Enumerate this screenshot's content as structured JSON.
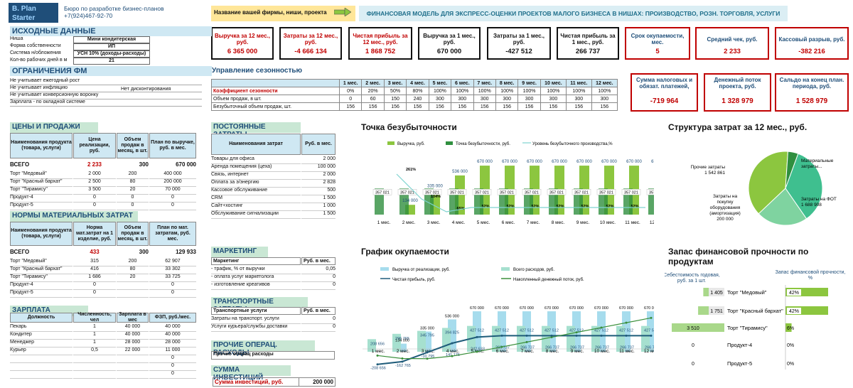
{
  "header": {
    "logo_line1": "B. Plan",
    "logo_line2": "Starter",
    "contact1": "Бюро по разработке бизнес-планов",
    "contact2": "+7(924)467-92-70",
    "biz_label": "Название вашей фирмы, ниши, проекта",
    "banner": "ФИНАНСОВАЯ МОДЕЛЬ ДЛЯ ЭКСПРЕСС-ОЦЕНКИ ПРОЕКТОВ МАЛОГО БИЗНЕСА В НИШАХ: ПРОИЗВОДСТВО, РОЗН. ТОРГОВЛЯ, УСЛУГИ"
  },
  "kpis": [
    {
      "t": "Выручка за 12 мес., руб.",
      "v": "6 365 000",
      "red": true
    },
    {
      "t": "Затраты за 12 мес., руб.",
      "v": "-4 666 134",
      "red": true
    },
    {
      "t": "Чистая прибыль за 12 мес., руб.",
      "v": "1 868 752",
      "red": true
    },
    {
      "t": "Выручка за 1 мес., руб.",
      "v": "670 000",
      "red": false
    },
    {
      "t": "Затраты за 1 мес., руб.",
      "v": "-427 512",
      "red": false
    },
    {
      "t": "Чистая прибыль за 1 мес., руб.",
      "v": "266 737",
      "red": false
    },
    {
      "t": "Срок окупаемости, мес.",
      "v": "5",
      "red": false
    },
    {
      "t": "Средний чек, руб.",
      "v": "2 233",
      "red": false
    },
    {
      "t": "Кассовый разрыв, руб.",
      "v": "-382 216",
      "red": true
    }
  ],
  "kpis2": [
    {
      "t": "Сумма налоговых и обязат. платежей,",
      "v": "-719 964"
    },
    {
      "t": "Денежный поток проекта, руб.",
      "v": "1 328 979"
    },
    {
      "t": "Сальдо на конец план. периода, руб.",
      "v": "1 528 979"
    }
  ],
  "source": {
    "title": "ИСХОДНЫЕ ДАННЫЕ",
    "rows": [
      [
        "Ниша",
        "Мини кондитерская"
      ],
      [
        "Форма собственности",
        "ИП"
      ],
      [
        "Система н/обложения",
        "УСН 10% (доходы-расходы)"
      ],
      [
        "Кол-во рабочих дней в м",
        "21"
      ]
    ]
  },
  "limits": {
    "title": "ОГРАНИЧЕНИЯ ФМ",
    "rows": [
      "Не учитывает ежегодный рост",
      "Не учитывает инфляцию",
      "Не учитывает конверсионную воронку",
      "Зарплата - по окладной системе"
    ],
    "extra": "Нет дисконтирования"
  },
  "season": {
    "title": "Управление сезонностью",
    "months": [
      "1 мес.",
      "2 мес.",
      "3 мес.",
      "4 мес.",
      "5 мес.",
      "6 мес.",
      "7 мес.",
      "8 мес.",
      "9 мес.",
      "10 мес.",
      "11 мес.",
      "12 мес."
    ],
    "rows": [
      {
        "label": "Коэффициент сезонности",
        "vals": [
          "0%",
          "20%",
          "50%",
          "80%",
          "100%",
          "100%",
          "100%",
          "100%",
          "100%",
          "100%",
          "100%",
          "100%"
        ]
      },
      {
        "label": "Объем продаж, в шт.",
        "vals": [
          "0",
          "60",
          "150",
          "240",
          "300",
          "300",
          "300",
          "300",
          "300",
          "300",
          "300",
          "300"
        ]
      },
      {
        "label": "Безубыточный объем продаж, шт.",
        "vals": [
          "156",
          "156",
          "156",
          "156",
          "156",
          "156",
          "156",
          "156",
          "156",
          "156",
          "156",
          "156"
        ]
      }
    ]
  },
  "prices": {
    "title": "ЦЕНЫ И ПРОДАЖИ",
    "headers": [
      "Наименования продукта (товара, услуги)",
      "Цена реализации, руб.",
      "Объем продаж в месяц, в шт.",
      "План по выручке, руб. в мес."
    ],
    "total": [
      "ВСЕГО",
      "2 233",
      "300",
      "670 000"
    ],
    "rows": [
      [
        "Торт \"Медовый\"",
        "2 000",
        "200",
        "400 000"
      ],
      [
        "Торт \"Красный бархат\"",
        "2 500",
        "80",
        "200 000"
      ],
      [
        "Торт \"Тирамису\"",
        "3 500",
        "20",
        "70 000"
      ],
      [
        "Продукт-4",
        "0",
        "0",
        "0"
      ],
      [
        "Продукт-5",
        "0",
        "0",
        "0"
      ]
    ]
  },
  "material": {
    "title": "НОРМЫ МАТЕРИАЛЬНЫХ ЗАТРАТ",
    "headers": [
      "Наименования продукта (товара, услуги)",
      "Норма мат.затрат на 1 изделие, руб.",
      "Объем продаж в месяц, в шт.",
      "План по мат. затратам, руб. мес."
    ],
    "total": [
      "ВСЕГО",
      "433",
      "300",
      "129 933"
    ],
    "rows": [
      [
        "Торт \"Медовый\"",
        "315",
        "200",
        "62 907"
      ],
      [
        "Торт \"Красный бархат\"",
        "416",
        "80",
        "33 302"
      ],
      [
        "Торт \"Тирамису\"",
        "1 686",
        "20",
        "33 725"
      ],
      [
        "Продукт-4",
        "0",
        "",
        "0"
      ],
      [
        "Продукт-5",
        "0",
        "",
        "0"
      ]
    ]
  },
  "salary": {
    "title": "ЗАРПЛАТА",
    "headers": [
      "Должность",
      "Численность, чел",
      "Зарплата в мес",
      "ФЗП, руб./мес."
    ],
    "rows": [
      [
        "Пекарь",
        "1",
        "40 000",
        "40 000"
      ],
      [
        "Кондитер",
        "1",
        "40 000",
        "40 000"
      ],
      [
        "Менеджер",
        "1",
        "28 000",
        "28 000"
      ],
      [
        "Курьер",
        "0,5",
        "22 000",
        "11 000"
      ],
      [
        "",
        "",
        "",
        "0"
      ],
      [
        "",
        "",
        "",
        "0"
      ],
      [
        "",
        "",
        "",
        "0"
      ]
    ]
  },
  "fixed": {
    "title": "ПОСТОЯННЫЕ ЗАТРАТЫ",
    "headers": [
      "Наименования затрат",
      "Руб. в мес."
    ],
    "rows": [
      [
        "Товары для офиса",
        "2 000"
      ],
      [
        "Аренда помещения (цеха)",
        "100 000"
      ],
      [
        "Связь, интернет",
        "2 000"
      ],
      [
        "Оплата за э/энергию",
        "2 828"
      ],
      [
        "Кассовое обслуживание",
        "500"
      ],
      [
        "CRM",
        "1 500"
      ],
      [
        "Сайт+хостинг",
        "1 000"
      ],
      [
        "Обслуживание сигнализации",
        "1 500"
      ]
    ]
  },
  "marketing": {
    "title": "МАРКЕТИНГ",
    "headers": [
      "Маркетинг",
      "Руб. в мес."
    ],
    "rows": [
      [
        "- трафик, % от выручки",
        "0,05"
      ],
      [
        "- оплата услуг маркетолога",
        "0"
      ],
      [
        "- изготовление креативов",
        "0"
      ]
    ]
  },
  "transport": {
    "title": "ТРАНСПОРТНЫЕ ЗАТРАТЫ",
    "headers": [
      "Транспортные услуги",
      "Руб. в мес."
    ],
    "rows": [
      [
        "Затраты на транспорт. услуги",
        "0"
      ],
      [
        "Услуги курьера/службы доставки",
        "0"
      ]
    ]
  },
  "ops": {
    "title": "ПРОЧИЕ ОПЕРАЦ. РАСХОДЫ",
    "rows": [
      [
        "Прочие операц расходы",
        ""
      ]
    ]
  },
  "invest": {
    "title": "СУММА ИНВЕСТИЦИЙ",
    "label": "Сумма инвестиций, руб.",
    "value": "200 000"
  },
  "chart_data": [
    {
      "type": "bar",
      "title": "Точка безубыточности",
      "legend": [
        "Выручка, руб.",
        "Точка безубыточности, руб.",
        "Уровень безубыточного производства,%"
      ],
      "categories": [
        "1 мес.",
        "2 мес.",
        "3 мес.",
        "4 мес.",
        "5 мес.",
        "6 мес.",
        "7 мес.",
        "8 мес.",
        "9 мес.",
        "10 мес.",
        "11 мес.",
        "12 мес."
      ],
      "series": [
        {
          "name": "Выручка, руб.",
          "values": [
            0,
            134000,
            335000,
            536000,
            670000,
            670000,
            670000,
            670000,
            670000,
            670000,
            670000,
            670000
          ]
        },
        {
          "name": "Точка безубыточности, руб.",
          "values": [
            357021,
            357021,
            357021,
            357021,
            357021,
            357021,
            357021,
            357021,
            357021,
            357021,
            357021,
            357021
          ]
        },
        {
          "name": "Уровень безубыточного производства,%",
          "values": [
            0,
            261,
            104,
            65,
            52,
            52,
            52,
            52,
            52,
            52,
            52,
            52
          ]
        }
      ],
      "labels_rev": [
        "",
        "134 000",
        "335 000",
        "536 000",
        "670 000",
        "670 000",
        "670 000",
        "670 000",
        "670 000",
        "670 000",
        "670 000",
        "670 000"
      ],
      "labels_be": [
        "357 021",
        "357 021",
        "357 021",
        "357 021",
        "357 021",
        "357 021",
        "357 021",
        "357 021",
        "357 021",
        "357 021",
        "357 021",
        "357 021"
      ],
      "labels_pct": [
        "",
        "261%",
        "104%",
        "65%",
        "52%",
        "52%",
        "52%",
        "52%",
        "52%",
        "52%",
        "52%",
        "52%"
      ]
    },
    {
      "type": "pie",
      "title": "Структура затрат за 12 мес., руб.",
      "slices": [
        {
          "label": "Прочие затраты",
          "value": 1542861,
          "text": "1 542 861"
        },
        {
          "label": "Материальные затраты...",
          "value": 1000000,
          "text": ""
        },
        {
          "label": "Затраты на ФОТ",
          "value": 1688908,
          "text": "1 688 908"
        },
        {
          "label": "Затраты на покупку оборудования (амортизация)",
          "value": 200000,
          "text": "200 000"
        }
      ]
    },
    {
      "type": "bar",
      "title": "График окупаемости",
      "legend": [
        "Выручка от реализации, руб.",
        "Всего расходов, руб.",
        "Чистая прибыль, руб.",
        "Накопленный денежный поток, руб."
      ],
      "categories": [
        "1 мес.",
        "2 мес.",
        "3 мес.",
        "4 мес.",
        "5 мес.",
        "6 мес.",
        "7 мес.",
        "8 мес.",
        "9 мес.",
        "10 мес.",
        "11 мес.",
        "12 мес."
      ],
      "series": [
        {
          "name": "Выручка от реализации, руб.",
          "values": [
            0,
            134000,
            335000,
            536000,
            670000,
            670000,
            670000,
            670000,
            670000,
            670000,
            670000,
            670000
          ]
        },
        {
          "name": "Всего расходов, руб.",
          "values": [
            208656,
            296765,
            345795,
            394825,
            427512,
            427512,
            427512,
            427512,
            427512,
            427512,
            427512,
            427512
          ]
        },
        {
          "name": "Чистая прибыль, руб.",
          "values": [
            -208656,
            -162765,
            -10795,
            141175,
            242633,
            266737,
            266737,
            266737,
            266737,
            266737,
            266737,
            266737
          ]
        },
        {
          "name": "Накопленный денежный поток, руб.",
          "values": [
            -208656,
            -371421,
            -382216,
            -241041,
            1592,
            268329,
            535066,
            801803,
            1068540,
            1335277,
            1602014,
            1868752
          ]
        }
      ],
      "labels_rev": [
        "",
        "134 000",
        "335 000",
        "536 000",
        "670 000",
        "670 000",
        "670 000",
        "670 000",
        "670 000",
        "670 000",
        "670 000",
        "670 000"
      ],
      "labels_exp": [
        "208 656",
        "296 765",
        "345 795",
        "394 825",
        "427 512",
        "427 512",
        "427 512",
        "427 512",
        "427 512",
        "427 512",
        "427 512",
        "427 512"
      ],
      "labels_np": [
        "-208 656",
        "-162 765",
        "-10 795",
        "141 175",
        "242 633",
        "266 737",
        "266 737",
        "266 737",
        "266 737",
        "266 737",
        "266 737",
        "266 737"
      ]
    },
    {
      "type": "bar",
      "title": "Запас финансовой прочности по продуктам",
      "xlabel": "Себестоимость годовая, руб. за 1 шт.",
      "ylabel": "Запас финансовой прочности, %",
      "categories": [
        "Торт \"Медовый\"",
        "Торт \"Красный бархат\"",
        "Торт \"Тирамису\"",
        "Продукт-4",
        "Продукт-5"
      ],
      "cost": [
        1405,
        1751,
        3510,
        0,
        0
      ],
      "cost_text": [
        "1 405",
        "1 751",
        "3 510",
        "0",
        "0"
      ],
      "margin": [
        42,
        42,
        6,
        0,
        0
      ],
      "margin_text": [
        "42%",
        "42%",
        "6%",
        "0%",
        "0%"
      ]
    }
  ]
}
